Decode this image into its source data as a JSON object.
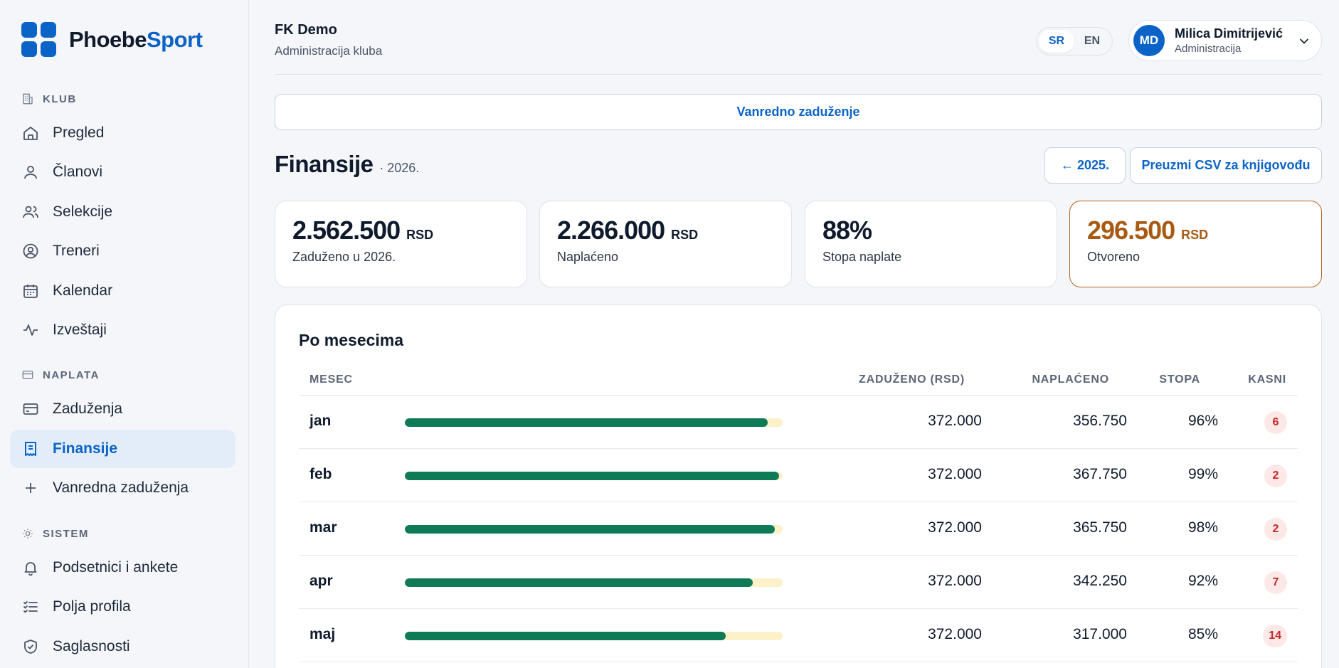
{
  "brand": {
    "name_part1": "Phoebe",
    "name_part2": "Sport"
  },
  "sidebar": {
    "sections": {
      "klub": "KLUB",
      "naplata": "NAPLATA",
      "sistem": "SISTEM"
    },
    "items": {
      "pregled": "Pregled",
      "clanovi": "Članovi",
      "selekcije": "Selekcije",
      "treneri": "Treneri",
      "kalendar": "Kalendar",
      "izvestaji": "Izveštaji",
      "zaduzenja": "Zaduženja",
      "finansije": "Finansije",
      "vanredna": "Vanredna zaduženja",
      "podsetnici": "Podsetnici i ankete",
      "polja": "Polja profila",
      "saglasnosti": "Saglasnosti"
    }
  },
  "header": {
    "club_name": "FK Demo",
    "club_sub": "Administracija kluba",
    "lang": {
      "sr": "SR",
      "en": "EN"
    },
    "user": {
      "initials": "MD",
      "name": "Milica Dimitrijević",
      "role": "Administracija"
    }
  },
  "actions": {
    "extra_charge": "Vanredno zaduženje",
    "prev_year": "← 2025.",
    "csv": "Preuzmi CSV za knjigovođu"
  },
  "page": {
    "title": "Finansije",
    "year": "· 2026."
  },
  "stats": [
    {
      "value": "2.562.500",
      "unit": "RSD",
      "label": "Zaduženo u 2026."
    },
    {
      "value": "2.266.000",
      "unit": "RSD",
      "label": "Naplaćeno"
    },
    {
      "value": "88%",
      "unit": "",
      "label": "Stopa naplate"
    },
    {
      "value": "296.500",
      "unit": "RSD",
      "label": "Otvoreno"
    }
  ],
  "monthly": {
    "title": "Po mesecima",
    "columns": {
      "month": "MESEC",
      "charged": "ZADUŽENO (RSD)",
      "collected": "NAPLAĆENO",
      "rate": "STOPA",
      "late": "KASNI"
    },
    "rows": [
      {
        "month": "jan",
        "progress": 0.96,
        "charged": "372.000",
        "collected": "356.750",
        "rate": "96%",
        "late": "6"
      },
      {
        "month": "feb",
        "progress": 0.99,
        "charged": "372.000",
        "collected": "367.750",
        "rate": "99%",
        "late": "2"
      },
      {
        "month": "mar",
        "progress": 0.98,
        "charged": "372.000",
        "collected": "365.750",
        "rate": "98%",
        "late": "2"
      },
      {
        "month": "apr",
        "progress": 0.92,
        "charged": "372.000",
        "collected": "342.250",
        "rate": "92%",
        "late": "7"
      },
      {
        "month": "maj",
        "progress": 0.85,
        "charged": "372.000",
        "collected": "317.000",
        "rate": "85%",
        "late": "14"
      }
    ]
  },
  "colors": {
    "accent": "#0b63c7",
    "bar_fill": "#0f7b56",
    "bar_track": "#fdf1c9",
    "warn": "#a85a12",
    "badge_bg": "#fde8e8",
    "badge_text": "#c62828"
  }
}
